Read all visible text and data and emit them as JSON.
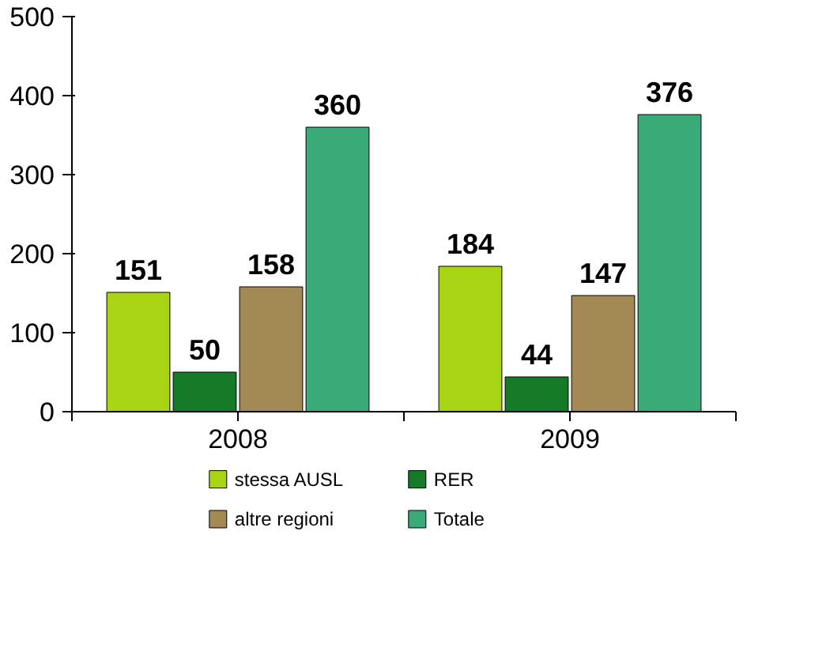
{
  "chart_data": {
    "type": "bar",
    "categories": [
      "2008",
      "2009"
    ],
    "series": [
      {
        "name": "stessa AUSL",
        "color": "#a8d414",
        "values": [
          151,
          184
        ]
      },
      {
        "name": "RER",
        "color": "#147a28",
        "values": [
          50,
          44
        ]
      },
      {
        "name": "altre regioni",
        "color": "#a38a55",
        "values": [
          158,
          147
        ]
      },
      {
        "name": "Totale",
        "color": "#3aaa78",
        "values": [
          360,
          376
        ]
      }
    ],
    "ylim": [
      0,
      500
    ],
    "yticks": [
      0,
      100,
      200,
      300,
      400,
      500
    ],
    "grid": false,
    "legend": "bottom",
    "data_labels": true
  }
}
